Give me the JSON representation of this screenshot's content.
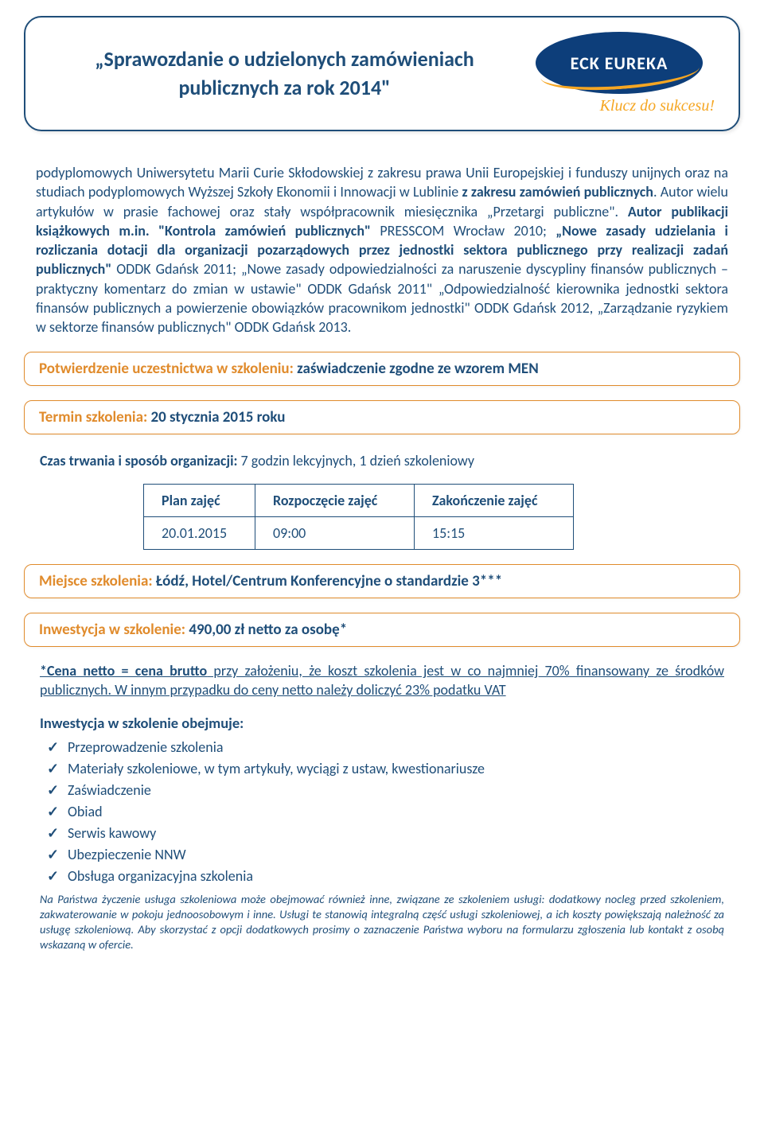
{
  "header": {
    "title_l1": "„Sprawozdanie o udzielonych zamówieniach",
    "title_l2": "publicznych za rok 2014\"",
    "logo_text": "ECK EUREKA",
    "logo_sub": "Klucz do sukcesu!"
  },
  "body": {
    "p1_a": "podyplomowych Uniwersytetu Marii Curie Skłodowskiej z zakresu prawa Unii Europejskiej i funduszy unijnych oraz na studiach podyplomowych Wyższej Szkoły Ekonomii i Innowacji w Lublinie ",
    "p1_b": "z zakresu zamówień publicznych",
    "p1_c": ". Autor wielu artykułów w prasie fachowej oraz stały współpracownik miesięcznika „Przetargi publiczne\". ",
    "p1_d": "Autor publikacji książkowych m.in. \"Kontrola zamówień publicznych\"",
    "p1_e": " PRESSCOM Wrocław 2010; ",
    "p1_f": "„Nowe zasady udzielania i rozliczania dotacji dla organizacji pozarządowych przez jednostki sektora publicznego przy realizacji zadań publicznych\"",
    "p1_g": " ODDK Gdańsk 2011; „Nowe zasady odpowiedzialności za naruszenie dyscypliny finansów publicznych – praktyczny komentarz do zmian w ustawie\" ODDK Gdańsk 2011\" „Odpowiedzialność kierownika jednostki sektora finansów publicznych a powierzenie obowiązków pracownikom jednostki\" ODDK Gdańsk 2012, „Zarządzanie ryzykiem w sektorze finansów publicznych\" ODDK Gdańsk 2013."
  },
  "confirmation": {
    "label": "Potwierdzenie uczestnictwa w szkoleniu: ",
    "value": "zaświadczenie zgodne ze wzorem MEN"
  },
  "term": {
    "label": "Termin szkolenia: ",
    "value": "20 stycznia 2015 roku"
  },
  "duration": {
    "label": "Czas trwania i sposób organizacji: ",
    "value": "7 godzin lekcyjnych, 1 dzień szkoleniowy"
  },
  "schedule": {
    "headers": [
      "Plan zajęć",
      "Rozpoczęcie zajęć",
      "Zakończenie zajęć"
    ],
    "row": [
      "20.01.2015",
      "09:00",
      "15:15"
    ],
    "col_widths": [
      "140px",
      "200px",
      "200px"
    ]
  },
  "place": {
    "label": "Miejsce szkolenia:  ",
    "value": "Łódź, Hotel/Centrum Konferencyjne o standardzie 3***"
  },
  "investment": {
    "label": "Inwestycja w szkolenie: ",
    "value": "490,00 zł netto za osobę*"
  },
  "price_note": {
    "bold": "*Cena netto = cena brutto",
    "rest": " przy założeniu, że koszt szkolenia jest w co najmniej 70% finansowany ze środków publicznych. W innym przypadku do ceny netto należy doliczyć 23% podatku VAT"
  },
  "includes": {
    "title": "Inwestycja w szkolenie obejmuje:",
    "items": [
      "Przeprowadzenie szkolenia",
      "Materiały szkoleniowe, w tym artykuły, wyciągi z ustaw, kwestionariusze",
      "Zaświadczenie",
      "Obiad",
      "Serwis kawowy",
      "Ubezpieczenie NNW",
      "Obsługa organizacyjna szkolenia"
    ]
  },
  "footnote": "Na Państwa życzenie usługa szkoleniowa może obejmować również inne, związane ze szkoleniem usługi: dodatkowy nocleg przed szkoleniem, zakwaterowanie w pokoju jednoosobowym i inne. Usługi te stanowią integralną część usługi szkoleniowej, a ich koszty powiększają należność za usługę szkoleniową. Aby skorzystać z opcji dodatkowych prosimy o zaznaczenie Państwa wyboru na formularzu zgłoszenia lub kontakt z osobą wskazaną w ofercie.",
  "colors": {
    "primary": "#1f4e79",
    "accent": "#e08b2c",
    "logo_bg": "#0d3e7a",
    "logo_swoosh": "#f5a623",
    "background": "#ffffff"
  },
  "typography": {
    "body_fontsize": 18,
    "header_fontsize": 26,
    "footnote_fontsize": 14.5,
    "font_family": "Calibri"
  }
}
